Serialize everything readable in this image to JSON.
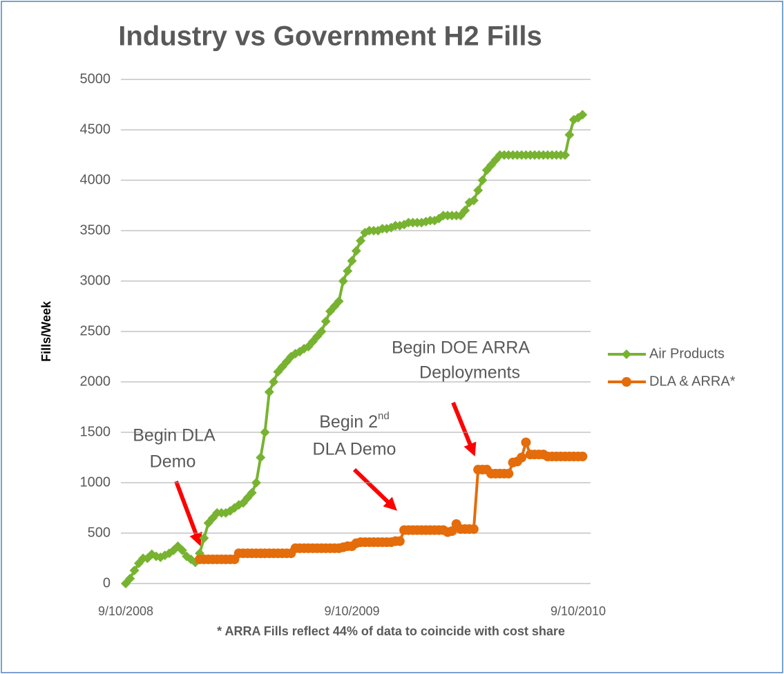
{
  "chart_data": {
    "type": "line",
    "title": "Industry vs Government H2 Fills",
    "y_label": "Fills/Week",
    "footnote": "* ARRA Fills reflect 44% of data to coincide with cost share",
    "annotations": [
      {
        "lines": [
          "Begin DLA",
          "Demo"
        ]
      },
      {
        "lines": [
          {
            "text": "Begin 2",
            "sup": "nd"
          },
          "DLA Demo"
        ]
      },
      {
        "lines": [
          "Begin DOE ARRA",
          "Deployments"
        ]
      }
    ],
    "categories": [
      "9/10/2008",
      null,
      null,
      null,
      null,
      null,
      null,
      null,
      null,
      null,
      null,
      null,
      null,
      null,
      null,
      null,
      null,
      null,
      null,
      null,
      null,
      null,
      null,
      null,
      null,
      null,
      null,
      null,
      null,
      null,
      null,
      null,
      null,
      null,
      null,
      null,
      null,
      null,
      null,
      null,
      null,
      null,
      null,
      null,
      null,
      null,
      null,
      null,
      null,
      null,
      null,
      null,
      "9/10/2009",
      null,
      null,
      null,
      null,
      null,
      null,
      null,
      null,
      null,
      null,
      null,
      null,
      null,
      null,
      null,
      null,
      null,
      null,
      null,
      null,
      null,
      null,
      null,
      null,
      null,
      null,
      null,
      null,
      null,
      null,
      null,
      null,
      null,
      null,
      null,
      null,
      null,
      null,
      null,
      null,
      null,
      null,
      null,
      null,
      null,
      null,
      null,
      null,
      null,
      null,
      null,
      "9/10/2010",
      null
    ],
    "ylim": [
      0,
      5000
    ],
    "yticks": [
      0,
      500,
      1000,
      1500,
      2000,
      2500,
      3000,
      3500,
      4000,
      4500,
      5000
    ],
    "grid": true,
    "legend": "right",
    "series": [
      {
        "name": "Air Products",
        "color": "#77b331",
        "marker": "diamond",
        "values": [
          0,
          50,
          130,
          200,
          250,
          250,
          290,
          270,
          260,
          280,
          300,
          330,
          370,
          330,
          270,
          240,
          210,
          300,
          450,
          600,
          650,
          700,
          700,
          700,
          720,
          750,
          780,
          800,
          850,
          900,
          1000,
          1250,
          1500,
          1900,
          2000,
          2100,
          2150,
          2200,
          2250,
          2280,
          2300,
          2330,
          2350,
          2400,
          2450,
          2500,
          2600,
          2700,
          2750,
          2800,
          3000,
          3100,
          3200,
          3300,
          3400,
          3480,
          3500,
          3500,
          3500,
          3520,
          3520,
          3530,
          3550,
          3550,
          3560,
          3580,
          3580,
          3580,
          3580,
          3590,
          3600,
          3600,
          3620,
          3650,
          3650,
          3650,
          3650,
          3650,
          3700,
          3780,
          3800,
          3900,
          4000,
          4100,
          4150,
          4200,
          4250,
          4250,
          4250,
          4250,
          4250,
          4250,
          4250,
          4250,
          4250,
          4250,
          4250,
          4250,
          4250,
          4250,
          4250,
          4250,
          4450,
          4600,
          4620,
          4650
        ]
      },
      {
        "name": "DLA & ARRA*",
        "color": "#e46c0a",
        "marker": "circle",
        "values": [
          null,
          null,
          null,
          null,
          null,
          null,
          null,
          null,
          null,
          null,
          null,
          null,
          null,
          null,
          null,
          null,
          null,
          240,
          240,
          240,
          240,
          240,
          240,
          240,
          240,
          240,
          300,
          300,
          300,
          300,
          300,
          300,
          300,
          300,
          300,
          300,
          300,
          300,
          300,
          350,
          350,
          350,
          350,
          350,
          350,
          350,
          350,
          350,
          350,
          350,
          360,
          370,
          370,
          400,
          410,
          410,
          410,
          410,
          410,
          410,
          410,
          410,
          420,
          420,
          530,
          530,
          530,
          530,
          530,
          530,
          530,
          530,
          530,
          530,
          510,
          520,
          590,
          540,
          540,
          540,
          540,
          1130,
          1130,
          1130,
          1090,
          1090,
          1090,
          1090,
          1090,
          1200,
          1210,
          1250,
          1400,
          1280,
          1280,
          1280,
          1280,
          1260,
          1260,
          1260,
          1260,
          1260,
          1260,
          1260,
          1260,
          1260
        ]
      }
    ]
  }
}
